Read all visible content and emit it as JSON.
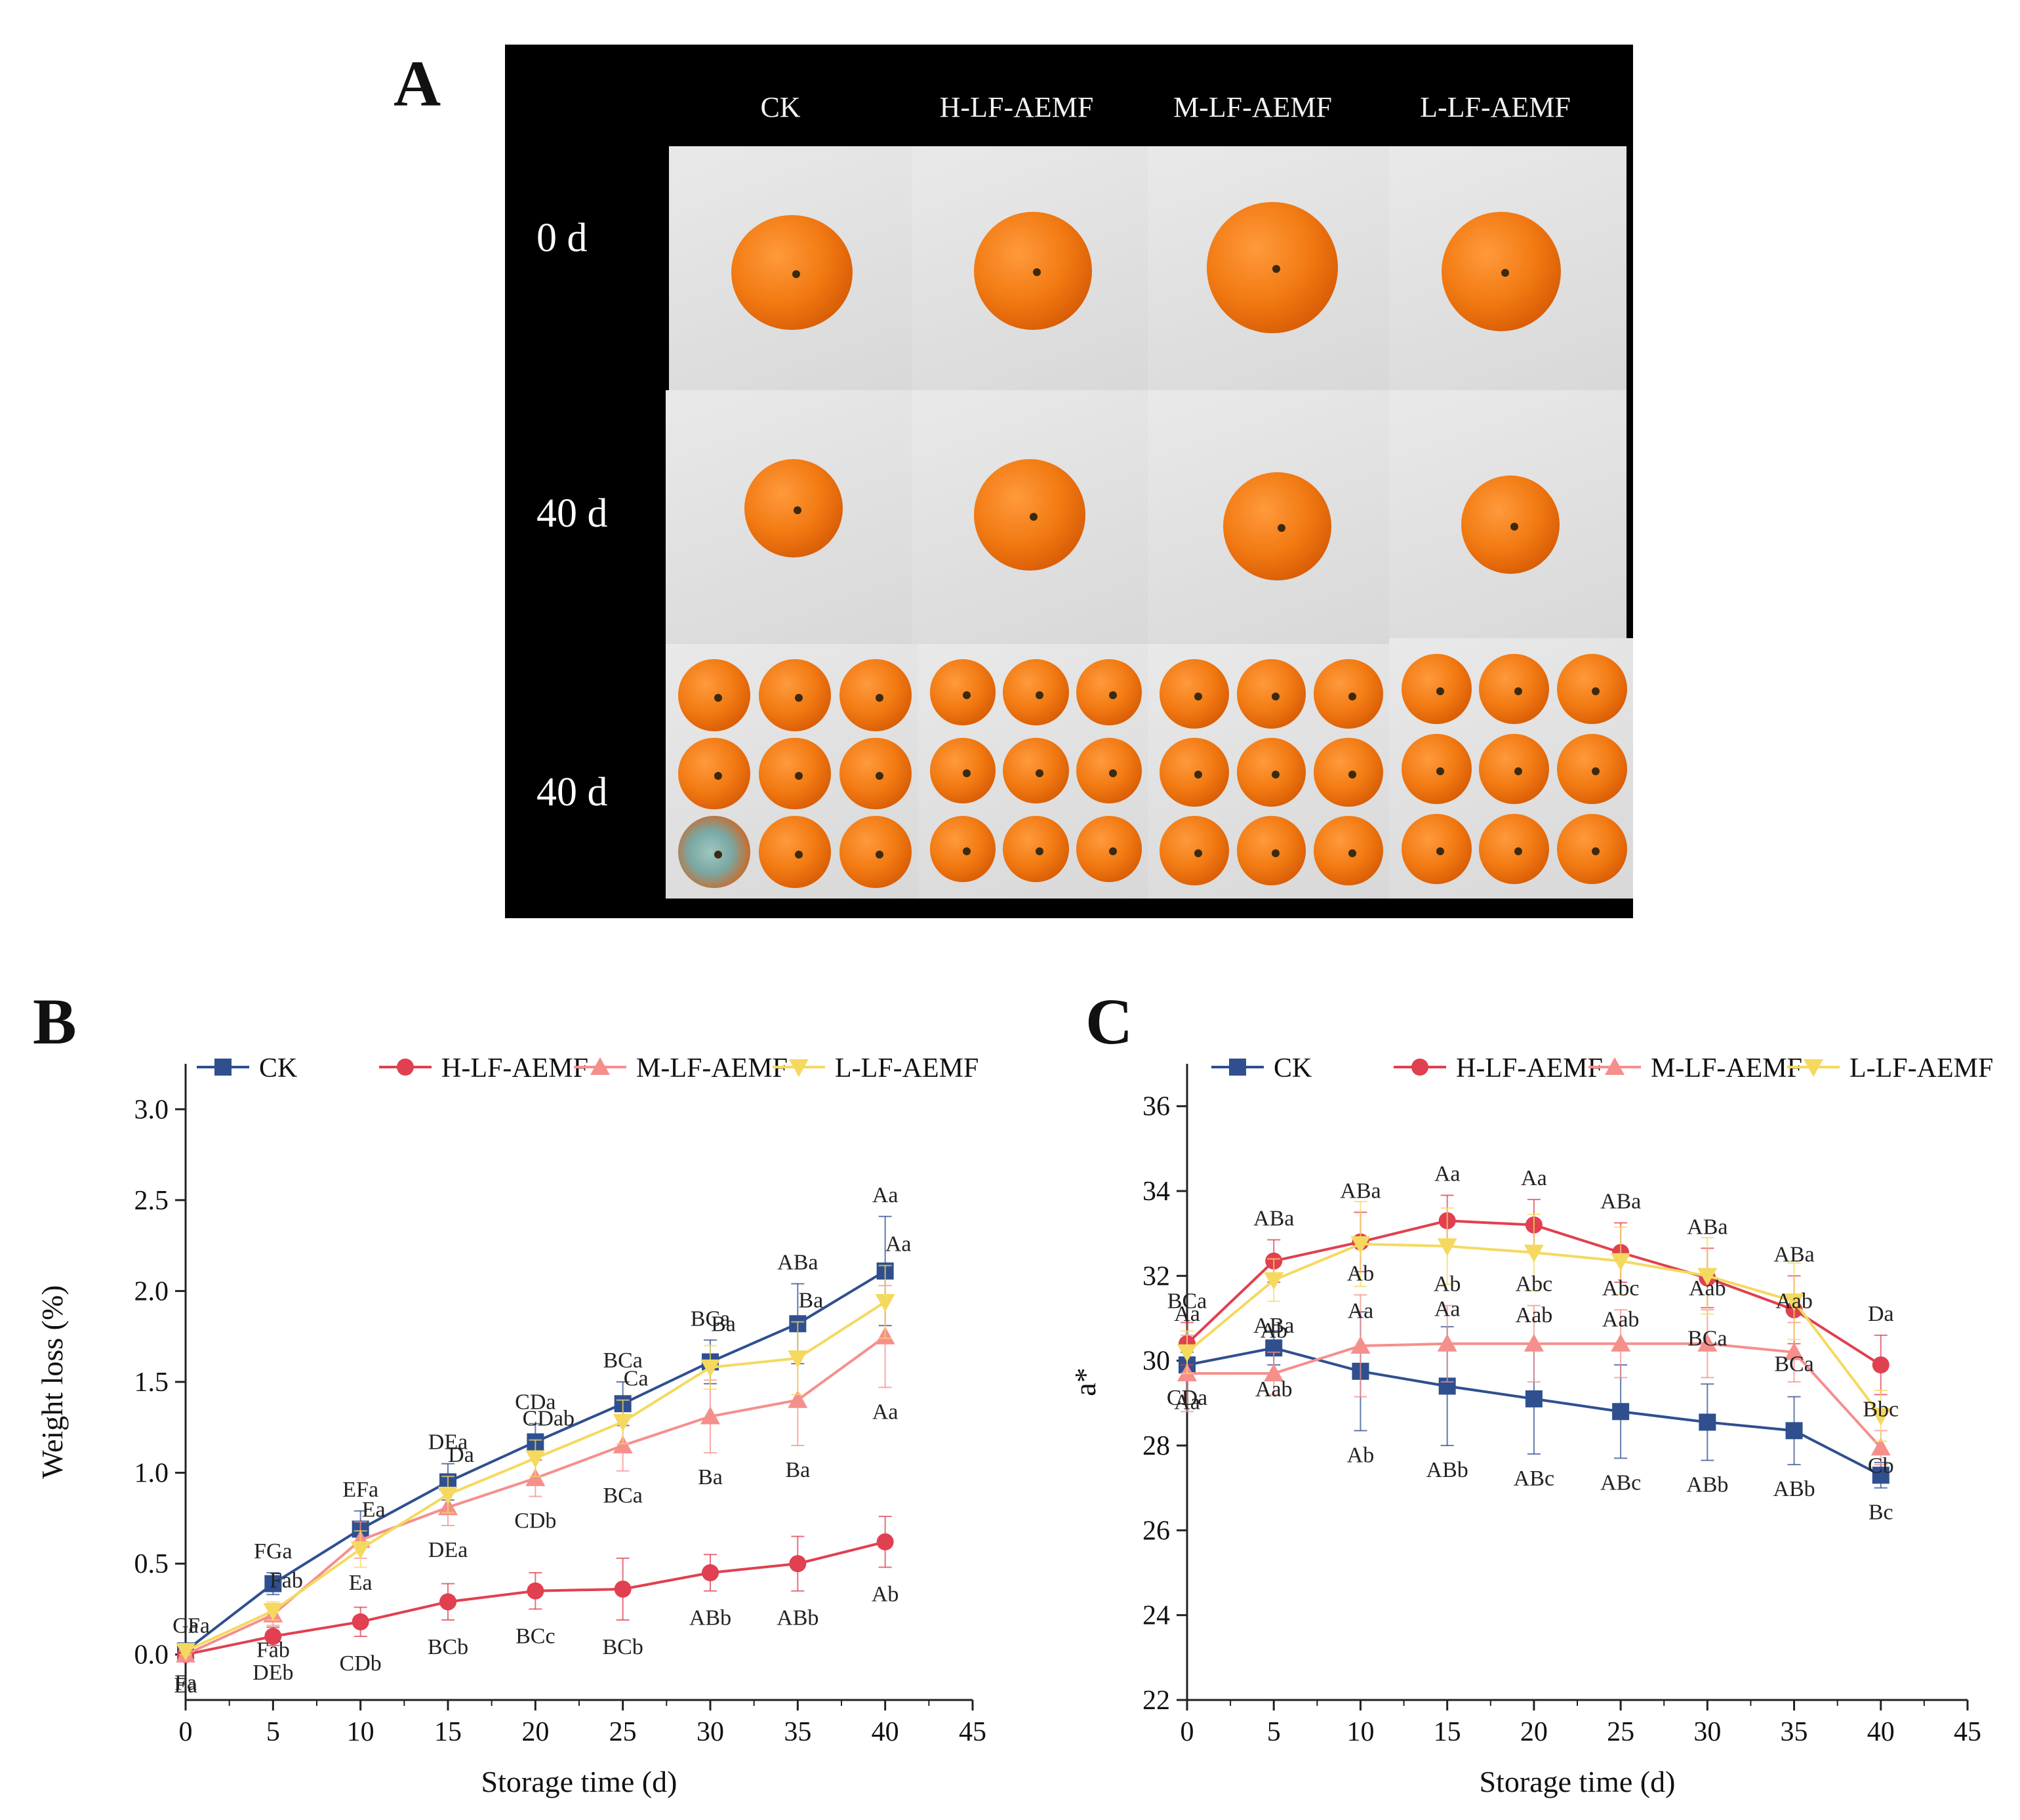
{
  "panel_labels": {
    "a": "A",
    "b": "B",
    "c": "C"
  },
  "photo_panel": {
    "columns": [
      "CK",
      "H-LF-AEMF",
      "M-LF-AEMF",
      "L-LF-AEMF"
    ],
    "rows": [
      "0 d",
      "40 d",
      "40 d"
    ]
  },
  "colors": {
    "CK": "#2f4f8f",
    "H-LF-AEMF": "#e0404f",
    "M-LF-AEMF": "#f58f8c",
    "L-LF-AEMF": "#f5d95f"
  },
  "chart_data": [
    {
      "type": "line",
      "title": "",
      "xlabel": "Storage time (d)",
      "ylabel": "Weight loss (%)",
      "xlim": [
        0,
        45
      ],
      "ylim": [
        -0.25,
        3.25
      ],
      "x_ticks": [
        0,
        5,
        10,
        15,
        20,
        25,
        30,
        35,
        40,
        45
      ],
      "y_ticks": [
        0.0,
        0.5,
        1.0,
        1.5,
        2.0,
        2.5,
        3.0
      ],
      "x_tick_labels": [
        "0",
        "5",
        "10",
        "15",
        "20",
        "25",
        "30",
        "35",
        "40",
        "45"
      ],
      "y_tick_labels": [
        "0.0",
        "0.5",
        "1.0",
        "1.5",
        "2.0",
        "2.5",
        "3.0"
      ],
      "legend_position": "top",
      "x": [
        0,
        5,
        10,
        15,
        20,
        25,
        30,
        35,
        40
      ],
      "series": [
        {
          "name": "CK",
          "marker": "square",
          "values": [
            0.02,
            0.39,
            0.69,
            0.95,
            1.17,
            1.38,
            1.61,
            1.82,
            2.11
          ],
          "errors": [
            0.02,
            0.06,
            0.1,
            0.1,
            0.1,
            0.12,
            0.12,
            0.22,
            0.3
          ],
          "annotations": [
            "Ga",
            "FGa",
            "EFa",
            "DEa",
            "CDa",
            "BCa",
            "BCa",
            "ABa",
            "Aa"
          ]
        },
        {
          "name": "H-LF-AEMF",
          "marker": "circle",
          "values": [
            0.0,
            0.1,
            0.18,
            0.29,
            0.35,
            0.36,
            0.45,
            0.5,
            0.62
          ],
          "errors": [
            0.02,
            0.05,
            0.08,
            0.1,
            0.1,
            0.17,
            0.1,
            0.15,
            0.14
          ],
          "annotations": [
            "Ea",
            "DEb",
            "CDb",
            "BCb",
            "BCc",
            "BCb",
            "ABb",
            "ABb",
            "Ab"
          ]
        },
        {
          "name": "M-LF-AEMF",
          "marker": "triangle-up",
          "values": [
            0.0,
            0.22,
            0.63,
            0.81,
            0.97,
            1.15,
            1.31,
            1.4,
            1.75
          ],
          "errors": [
            0.02,
            0.06,
            0.1,
            0.1,
            0.1,
            0.14,
            0.2,
            0.25,
            0.28
          ],
          "annotations": [
            "Fa",
            "Fab",
            "Ea",
            "DEa",
            "CDb",
            "BCa",
            "Ba",
            "Ba",
            "Aa"
          ]
        },
        {
          "name": "L-LF-AEMF",
          "marker": "triangle-down",
          "values": [
            0.02,
            0.24,
            0.58,
            0.88,
            1.08,
            1.28,
            1.58,
            1.63,
            1.94
          ],
          "errors": [
            0.02,
            0.05,
            0.1,
            0.1,
            0.1,
            0.12,
            0.12,
            0.2,
            0.2
          ],
          "annotations": [
            "Fa",
            "Fab",
            "Ea",
            "Da",
            "CDab",
            "Ca",
            "Ba",
            "Ba",
            "Aa"
          ]
        }
      ]
    },
    {
      "type": "line",
      "title": "",
      "xlabel": "Storage time (d)",
      "ylabel": "a*",
      "xlim": [
        0,
        45
      ],
      "ylim": [
        22,
        37
      ],
      "x_ticks": [
        0,
        5,
        10,
        15,
        20,
        25,
        30,
        35,
        40,
        45
      ],
      "y_ticks": [
        22,
        24,
        26,
        28,
        30,
        32,
        34,
        36
      ],
      "x_tick_labels": [
        "0",
        "5",
        "10",
        "15",
        "20",
        "25",
        "30",
        "35",
        "40",
        "45"
      ],
      "y_tick_labels": [
        "22",
        "24",
        "26",
        "28",
        "30",
        "32",
        "34",
        "36"
      ],
      "legend_position": "top",
      "x": [
        0,
        5,
        10,
        15,
        20,
        25,
        30,
        35,
        40
      ],
      "series": [
        {
          "name": "CK",
          "marker": "square",
          "values": [
            29.9,
            30.3,
            29.75,
            29.4,
            29.1,
            28.8,
            28.55,
            28.35,
            27.3
          ],
          "errors": [
            0.3,
            0.4,
            1.4,
            1.4,
            1.3,
            1.1,
            0.9,
            0.8,
            0.3
          ],
          "annotations": [
            "Aa",
            "Aab",
            "Ab",
            "ABb",
            "ABc",
            "ABc",
            "ABb",
            "ABb",
            "Bc"
          ]
        },
        {
          "name": "H-LF-AEMF",
          "marker": "circle",
          "values": [
            30.4,
            32.35,
            32.8,
            33.3,
            33.2,
            32.55,
            31.95,
            31.2,
            29.9
          ],
          "errors": [
            0.5,
            0.5,
            0.7,
            0.6,
            0.6,
            0.7,
            0.7,
            0.8,
            0.7
          ],
          "annotations": [
            "BCa",
            "ABa",
            "ABa",
            "Aa",
            "Aa",
            "ABa",
            "ABa",
            "ABa",
            "Da"
          ]
        },
        {
          "name": "M-LF-AEMF",
          "marker": "triangle-up",
          "values": [
            29.7,
            29.7,
            30.35,
            30.4,
            30.4,
            30.4,
            30.4,
            30.2,
            27.95
          ],
          "errors": [
            0.9,
            0.5,
            1.2,
            0.9,
            0.9,
            0.8,
            0.8,
            0.7,
            0.4
          ],
          "annotations": [
            "Aa",
            "Ab",
            "Ab",
            "Ab",
            "Abc",
            "Abc",
            "Aab",
            "Aab",
            "Bbc"
          ]
        },
        {
          "name": "L-LF-AEMF",
          "marker": "triangle-down",
          "values": [
            30.2,
            31.9,
            32.75,
            32.7,
            32.55,
            32.35,
            32.0,
            31.4,
            28.7
          ],
          "errors": [
            0.5,
            0.5,
            1.0,
            0.9,
            0.9,
            0.8,
            0.9,
            0.9,
            0.6
          ],
          "annotations": [
            "CDa",
            "ABa",
            "Aa",
            "Aa",
            "Aab",
            "Aab",
            "BCa",
            "BCa",
            "Cb"
          ]
        }
      ]
    }
  ]
}
